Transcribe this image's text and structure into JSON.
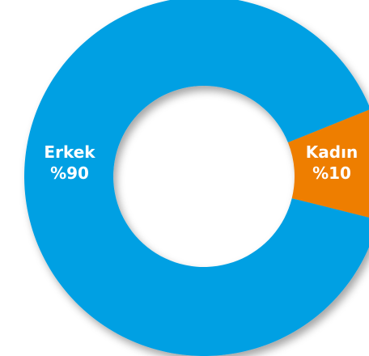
{
  "chart_data": {
    "type": "pie",
    "style": "donut",
    "categories": [
      "Erkek",
      "Kadın"
    ],
    "values": [
      90,
      10
    ],
    "value_labels": [
      "%90",
      "%10"
    ],
    "colors": {
      "Erkek": "#00A0E3",
      "Kadın": "#EE7E00"
    },
    "title": "",
    "legend": "none"
  }
}
